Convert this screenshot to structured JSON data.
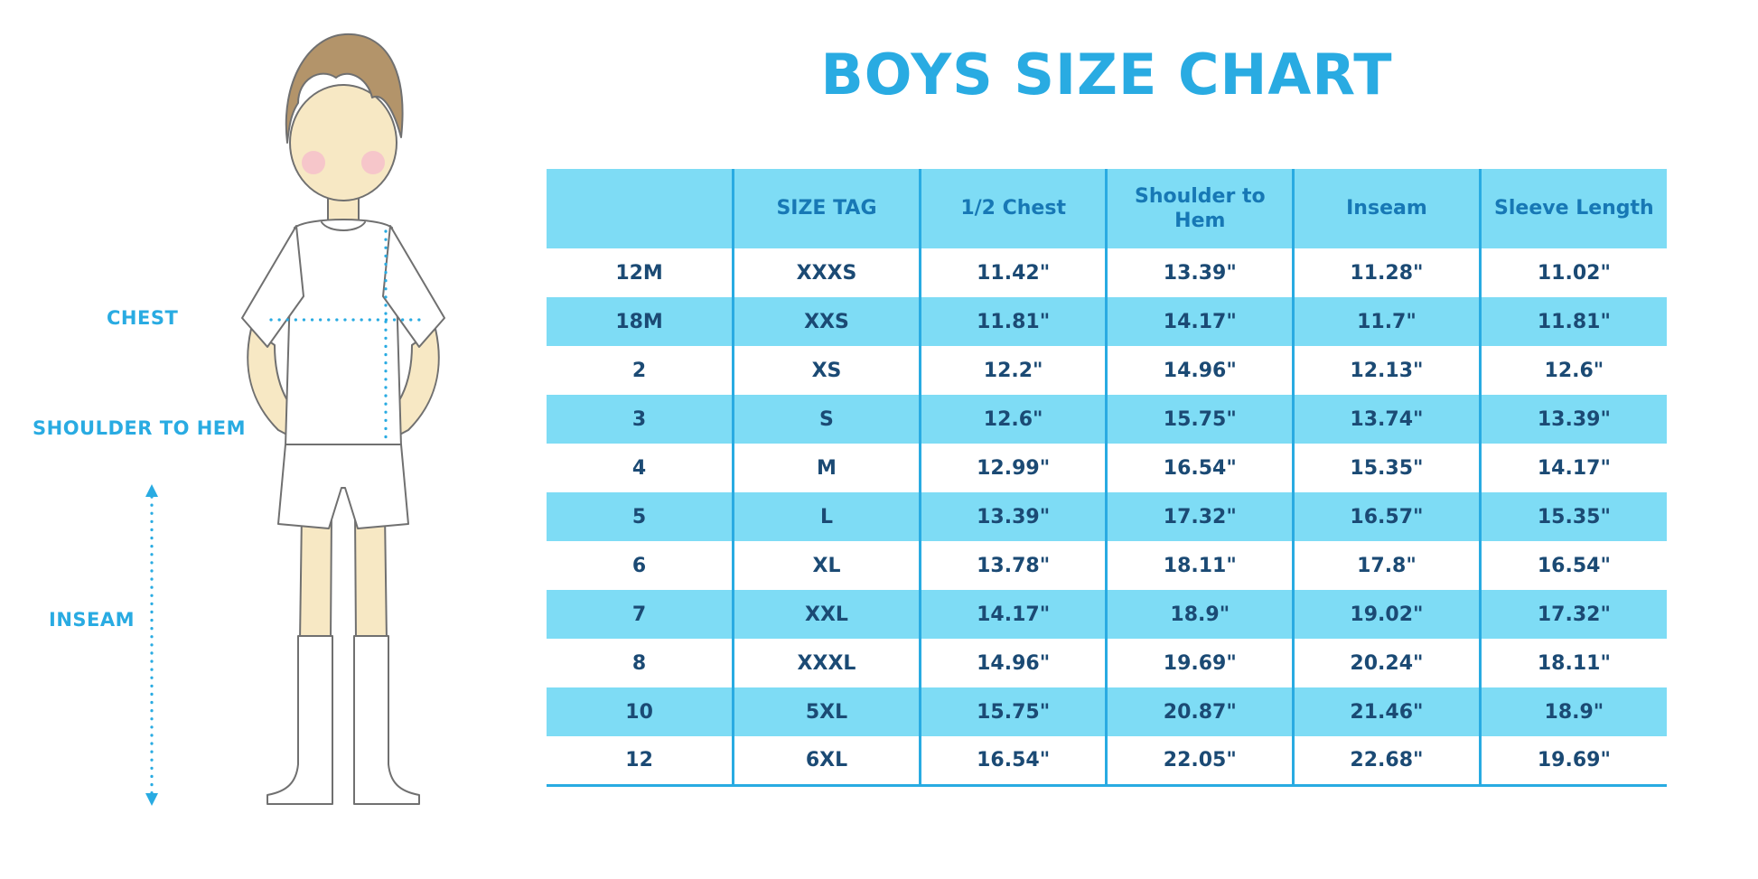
{
  "title": "BOYS SIZE CHART",
  "accent_color": "#29ABE2",
  "table_fill_color": "#7EDCF5",
  "figure": {
    "labels": {
      "chest": "CHEST",
      "shoulder_to_hem": "SHOULDER TO HEM",
      "inseam": "INSEAM"
    }
  },
  "chart_data": {
    "type": "table",
    "title": "BOYS SIZE CHART",
    "columns": [
      "",
      "SIZE TAG",
      "1/2 Chest",
      "Shoulder to Hem",
      "Inseam",
      "Sleeve Length"
    ],
    "rows": [
      [
        "12M",
        "XXXS",
        "11.42\"",
        "13.39\"",
        "11.28\"",
        "11.02\""
      ],
      [
        "18M",
        "XXS",
        "11.81\"",
        "14.17\"",
        "11.7\"",
        "11.81\""
      ],
      [
        "2",
        "XS",
        "12.2\"",
        "14.96\"",
        "12.13\"",
        "12.6\""
      ],
      [
        "3",
        "S",
        "12.6\"",
        "15.75\"",
        "13.74\"",
        "13.39\""
      ],
      [
        "4",
        "M",
        "12.99\"",
        "16.54\"",
        "15.35\"",
        "14.17\""
      ],
      [
        "5",
        "L",
        "13.39\"",
        "17.32\"",
        "16.57\"",
        "15.35\""
      ],
      [
        "6",
        "XL",
        "13.78\"",
        "18.11\"",
        "17.8\"",
        "16.54\""
      ],
      [
        "7",
        "XXL",
        "14.17\"",
        "18.9\"",
        "19.02\"",
        "17.32\""
      ],
      [
        "8",
        "XXXL",
        "14.96\"",
        "19.69\"",
        "20.24\"",
        "18.11\""
      ],
      [
        "10",
        "5XL",
        "15.75\"",
        "20.87\"",
        "21.46\"",
        "18.9\""
      ],
      [
        "12",
        "6XL",
        "16.54\"",
        "22.05\"",
        "22.68\"",
        "19.69\""
      ]
    ]
  }
}
